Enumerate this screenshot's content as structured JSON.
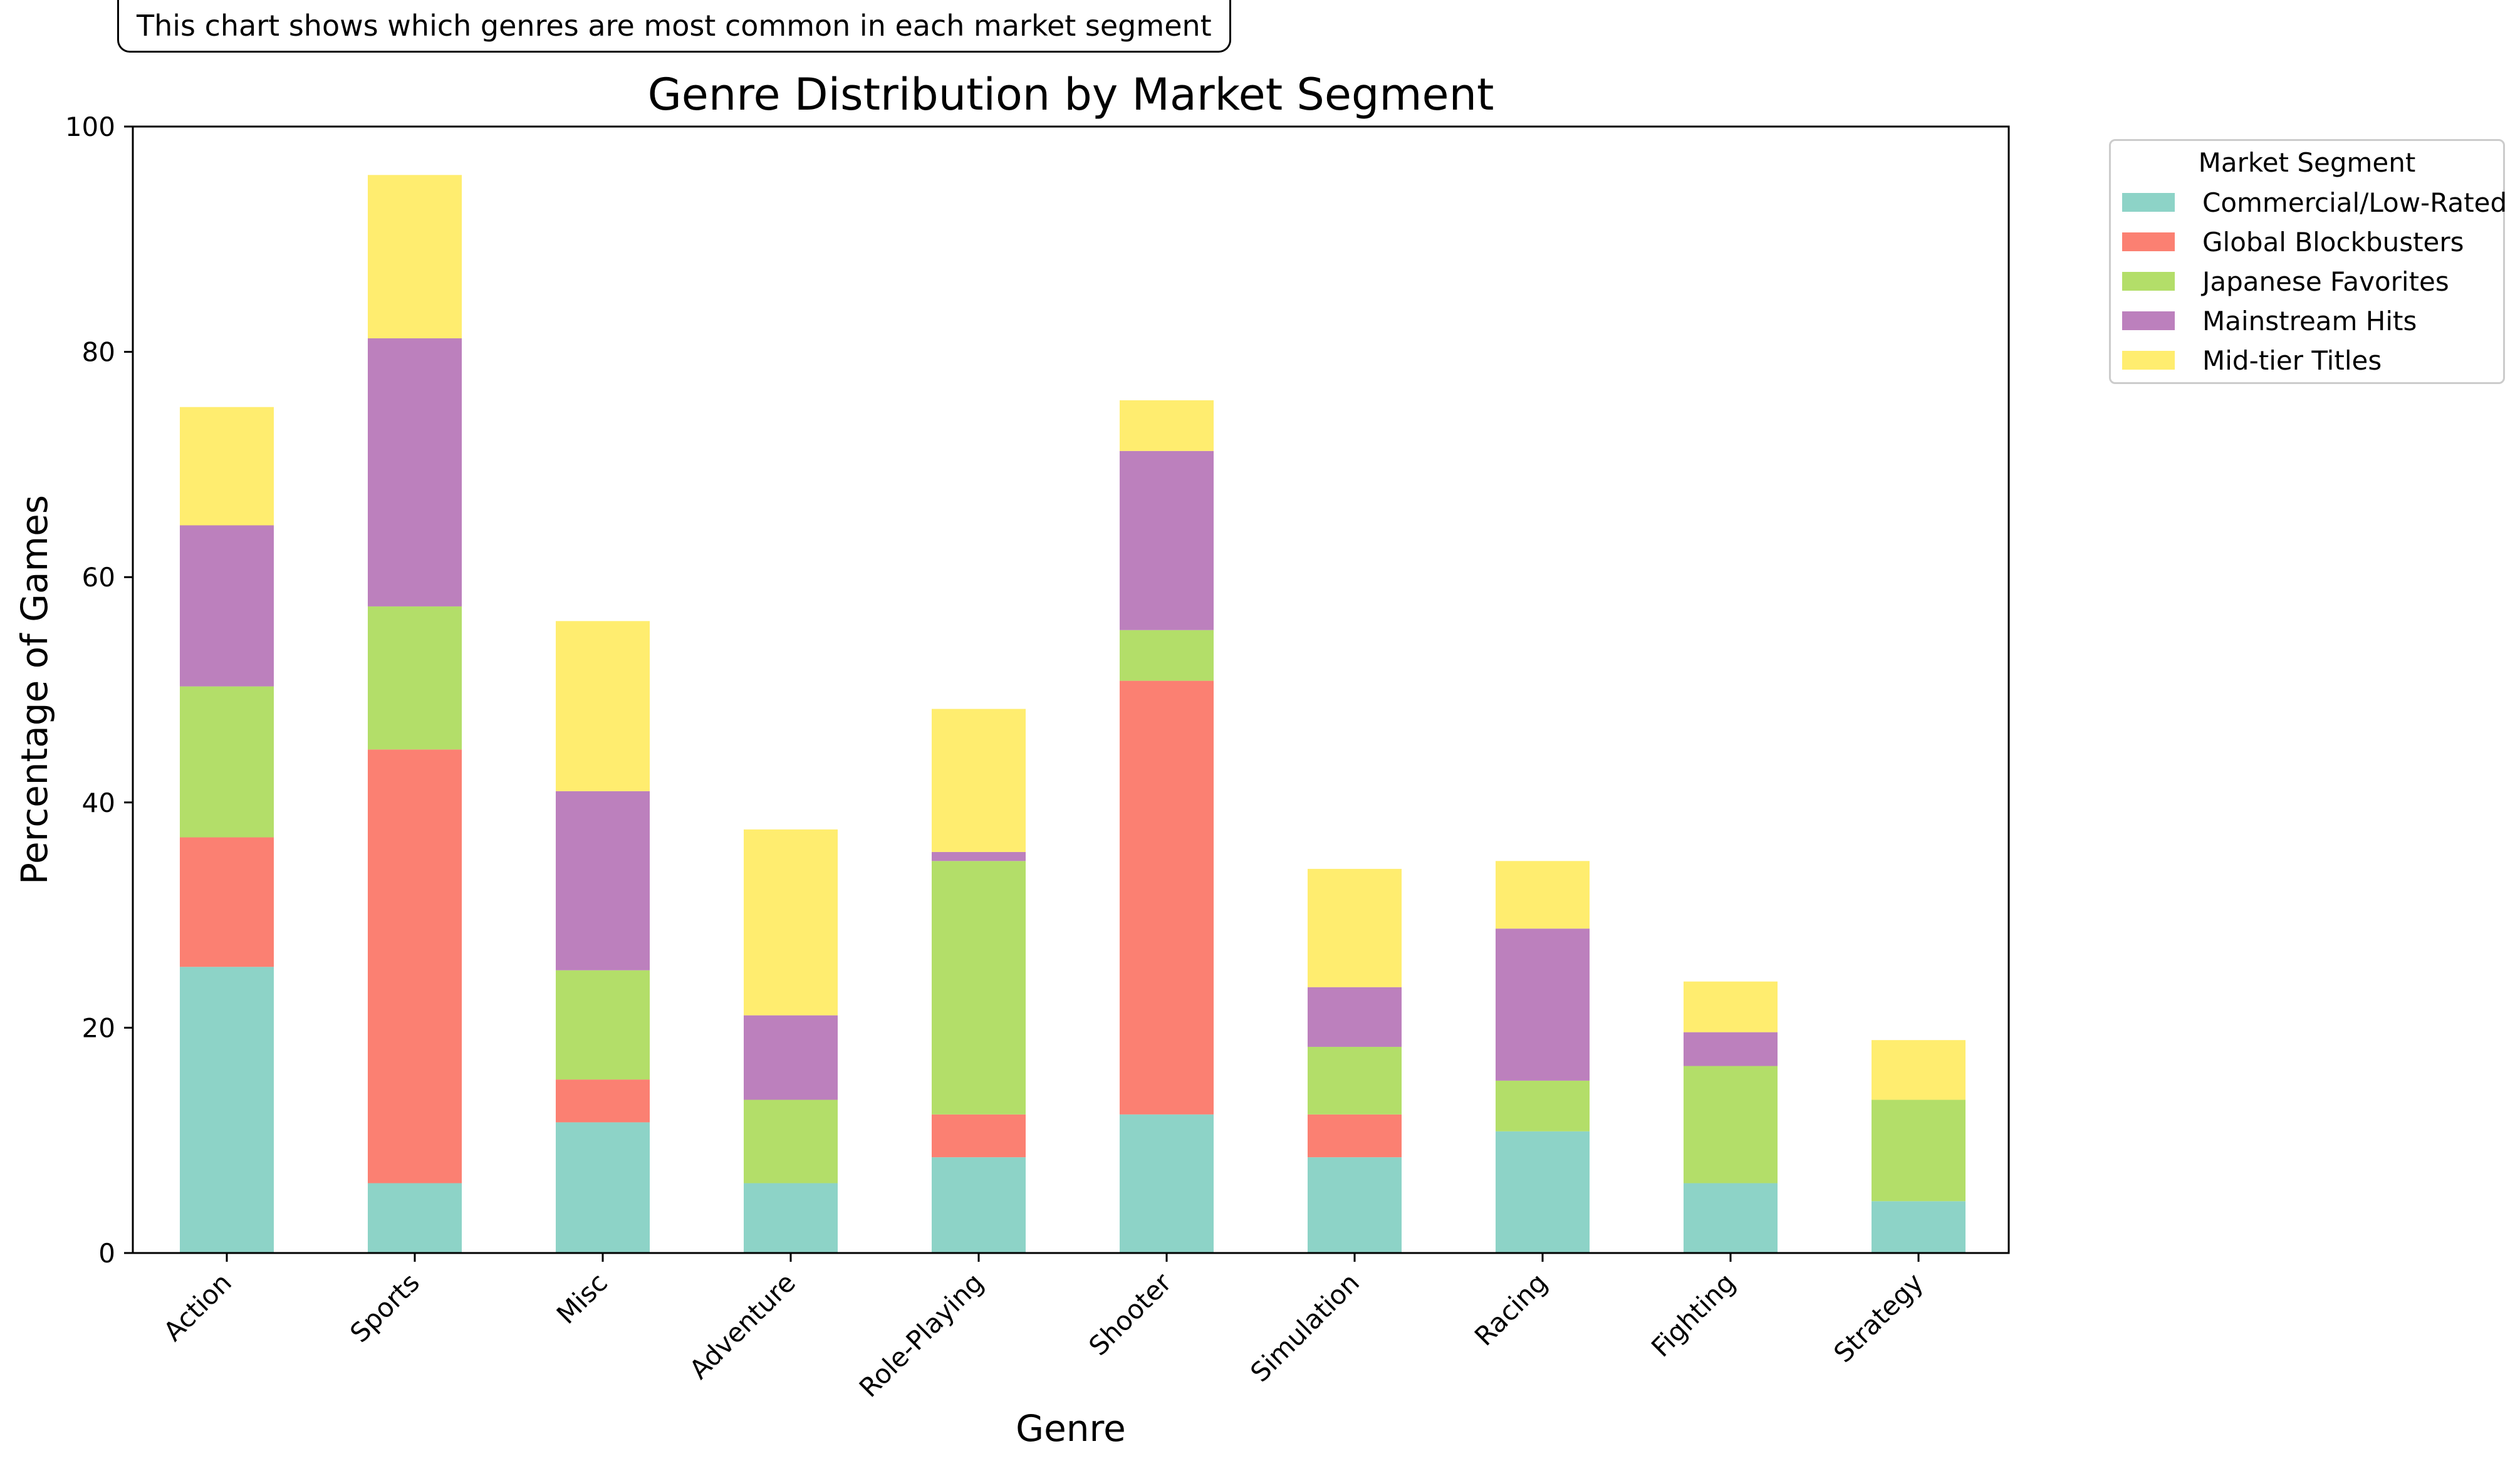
{
  "annotation": "This chart shows which genres are most common in each market segment",
  "chart_data": {
    "type": "bar",
    "stacked": true,
    "title": "Genre Distribution by Market Segment",
    "xlabel": "Genre",
    "ylabel": "Percentage of Games",
    "ylim": [
      0,
      100
    ],
    "yticks": [
      0,
      20,
      40,
      60,
      80,
      100
    ],
    "grid": false,
    "legend": {
      "title": "Market Segment",
      "placement": "outside upper right"
    },
    "categories": [
      "Action",
      "Sports",
      "Misc",
      "Adventure",
      "Role-Playing",
      "Shooter",
      "Simulation",
      "Racing",
      "Fighting",
      "Strategy"
    ],
    "series": [
      {
        "name": "Commercial/Low-Rated",
        "color": "#8dd3c7",
        "values": [
          25.4,
          6.2,
          11.6,
          6.2,
          8.5,
          12.3,
          8.5,
          10.8,
          6.2,
          4.6
        ]
      },
      {
        "name": "Global Blockbusters",
        "color": "#fb8072",
        "values": [
          11.5,
          38.5,
          3.8,
          0,
          3.8,
          38.5,
          3.8,
          0,
          0,
          0
        ]
      },
      {
        "name": "Japanese Favorites",
        "color": "#b3de69",
        "values": [
          13.4,
          12.7,
          9.7,
          7.4,
          22.5,
          4.5,
          6.0,
          4.5,
          10.4,
          9.0
        ]
      },
      {
        "name": "Mainstream Hits",
        "color": "#bc80bd",
        "values": [
          14.3,
          23.8,
          15.9,
          7.5,
          0.8,
          15.9,
          5.3,
          13.5,
          3.0,
          0
        ]
      },
      {
        "name": "Mid-tier Titles",
        "color": "#ffed6f",
        "values": [
          10.5,
          14.5,
          15.1,
          16.5,
          12.7,
          4.5,
          10.5,
          6.0,
          4.5,
          5.3
        ]
      }
    ]
  }
}
